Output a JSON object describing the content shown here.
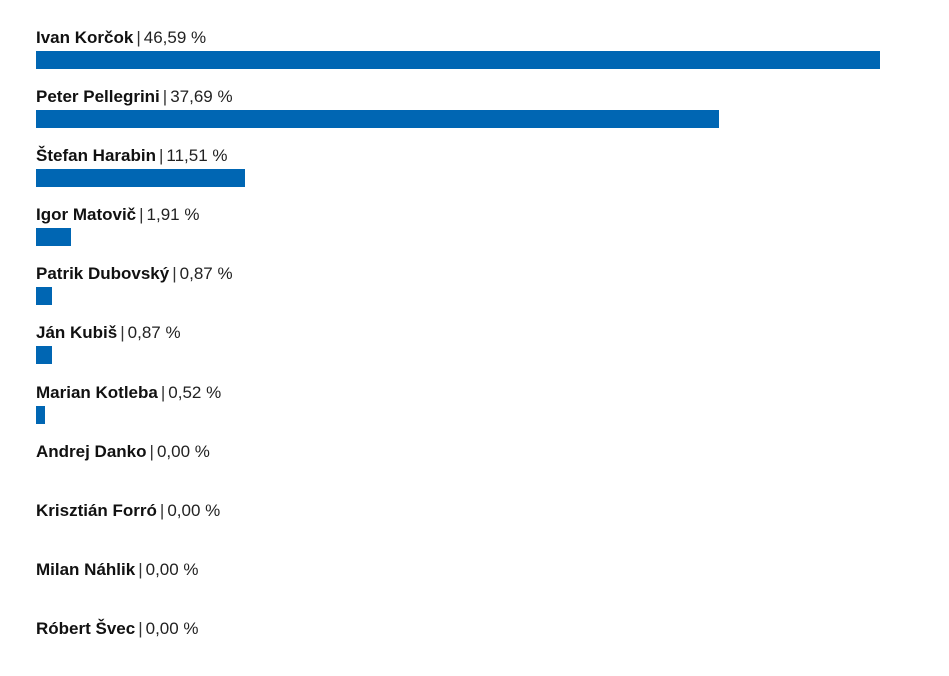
{
  "colors": {
    "bar": "#0066b3"
  },
  "chart_data": {
    "type": "bar",
    "orientation": "horizontal",
    "separator": "|",
    "categories": [
      "Ivan Korčok",
      "Peter Pellegrini",
      "Štefan Harabin",
      "Igor Matovič",
      "Patrik Dubovský",
      "Ján Kubiš",
      "Marian Kotleba",
      "Andrej Danko",
      "Krisztián Forró",
      "Milan Náhlik",
      "Róbert Švec"
    ],
    "values": [
      46.59,
      37.69,
      11.51,
      1.91,
      0.87,
      0.87,
      0.52,
      0.0,
      0.0,
      0.0,
      0.0
    ],
    "value_labels": [
      "46,59 %",
      "37,69 %",
      "11,51 %",
      "1,91 %",
      "0,87 %",
      "0,87 %",
      "0,52 %",
      "0,00 %",
      "0,00 %",
      "0,00 %",
      "0,00 %"
    ],
    "xlim": [
      0,
      46.59
    ],
    "grid": false,
    "legend": "none"
  }
}
